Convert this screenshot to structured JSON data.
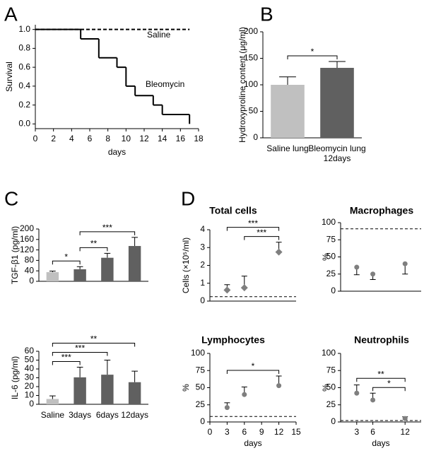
{
  "chart_data": [
    {
      "type": "line",
      "panel": "A",
      "step": true,
      "xlabel": "days",
      "ylabel": "Survival",
      "xlim": [
        0,
        18
      ],
      "xticks": [
        0,
        2,
        4,
        6,
        8,
        10,
        12,
        14,
        16,
        18
      ],
      "ylim": [
        -0.05,
        1.05
      ],
      "yticks": [
        {
          "value": 0,
          "label": "0.0"
        },
        {
          "value": 0.2,
          "label": "0.2"
        },
        {
          "value": 0.4,
          "label": "0.4"
        },
        {
          "value": 0.6,
          "label": "0.6"
        },
        {
          "value": 0.8,
          "label": "0.8"
        },
        {
          "value": 1,
          "label": "1.0"
        }
      ],
      "series": [
        {
          "name": "Saline",
          "color": "#000000",
          "dashed": true,
          "x": [
            0,
            17
          ],
          "values": [
            1,
            1
          ]
        },
        {
          "name": "Bleomycin",
          "color": "#000000",
          "dashed": false,
          "x": [
            0,
            5,
            7,
            9,
            10,
            11,
            13,
            14,
            17
          ],
          "values": [
            1,
            0.9,
            0.7,
            0.6,
            0.4,
            0.3,
            0.2,
            0.1,
            0
          ]
        }
      ]
    },
    {
      "type": "bar",
      "panel": "B",
      "ylabel": "Hydroxyproline content (μg/ml)",
      "categories": [
        "Saline lung",
        "Bleomycin lung\n12days"
      ],
      "values": [
        100,
        132
      ],
      "errors": [
        15,
        12
      ],
      "colors": [
        "#c0c0c0",
        "#606060"
      ],
      "ylim": [
        0,
        200
      ],
      "yticks": [
        0,
        50,
        100,
        150,
        200
      ],
      "significance": [
        {
          "from": 0,
          "to": 1,
          "label": "*"
        }
      ]
    },
    {
      "type": "bar",
      "panel": "C",
      "ylabel": "TGF-β1 (pg/ml)",
      "values": [
        35,
        46,
        90,
        135
      ],
      "errors": [
        4,
        10,
        17,
        33
      ],
      "colors": [
        "#c0c0c0",
        "#606060",
        "#606060",
        "#606060"
      ],
      "ylim": [
        0,
        200
      ],
      "yticks": [
        0,
        40,
        80,
        120,
        160,
        200
      ],
      "significance": [
        {
          "from": 0,
          "to": 1,
          "label": "*"
        },
        {
          "from": 1,
          "to": 2,
          "label": "**"
        },
        {
          "from": 1,
          "to": 3,
          "label": "***"
        }
      ]
    },
    {
      "type": "bar",
      "ylabel": "IL-6 (pg/ml)",
      "categories": [
        "Saline",
        "3days",
        "6days",
        "12days"
      ],
      "values": [
        6,
        30.5,
        33.5,
        25
      ],
      "errors": [
        3.5,
        11.5,
        16.5,
        12.5
      ],
      "colors": [
        "#c0c0c0",
        "#606060",
        "#606060",
        "#606060"
      ],
      "ylim": [
        0,
        60
      ],
      "yticks": [
        0,
        10,
        20,
        30,
        40,
        50,
        60
      ],
      "significance": [
        {
          "from": 0,
          "to": 1,
          "label": "***"
        },
        {
          "from": 0,
          "to": 2,
          "label": "***"
        },
        {
          "from": 0,
          "to": 3,
          "label": "**"
        }
      ]
    },
    {
      "type": "scatter",
      "panel": "D",
      "title": "Total cells",
      "ylabel": "Cells (×10⁵/ml)",
      "marker": "diamond",
      "color": "#7f7f7f",
      "x": [
        3,
        6,
        12
      ],
      "values": [
        0.62,
        0.75,
        2.75
      ],
      "errors": [
        0.3,
        0.65,
        0.55
      ],
      "error_direction": "up",
      "xlim": [
        0,
        15
      ],
      "ylim": [
        0,
        4
      ],
      "yticks": [
        0,
        1,
        2,
        3,
        4
      ],
      "reference_line": 0.25,
      "significance": [
        {
          "from": 1,
          "to": 2,
          "label": "***"
        },
        {
          "from": 0,
          "to": 2,
          "label": "***"
        }
      ]
    },
    {
      "type": "scatter",
      "title": "Macrophages",
      "ylabel": "%",
      "marker": "circle",
      "color": "#7f7f7f",
      "x": [
        3,
        6,
        12
      ],
      "values": [
        35,
        25,
        40
      ],
      "errors": [
        11,
        8,
        15
      ],
      "error_direction": "down",
      "xlim": [
        0,
        15
      ],
      "ylim": [
        0,
        100
      ],
      "yticks": [
        0,
        25,
        50,
        75,
        100
      ],
      "reference_line": 91
    },
    {
      "type": "scatter",
      "title": "Lymphocytes",
      "ylabel": "%",
      "xlabel": "days",
      "marker": "circle",
      "color": "#7f7f7f",
      "x": [
        3,
        6,
        12
      ],
      "values": [
        21,
        40,
        53
      ],
      "errors": [
        7,
        11,
        14
      ],
      "error_direction": "up",
      "xlim": [
        0,
        15
      ],
      "xticks": [
        0,
        3,
        6,
        9,
        12,
        15
      ],
      "ylim": [
        0,
        100
      ],
      "yticks": [
        0,
        25,
        50,
        75,
        100
      ],
      "reference_line": 8,
      "significance": [
        {
          "from": 0,
          "to": 2,
          "label": "*"
        }
      ]
    },
    {
      "type": "scatter",
      "title": "Neutrophils",
      "ylabel": "%",
      "xlabel": "days",
      "marker": "circle",
      "color": "#7f7f7f",
      "x": [
        3,
        6,
        12
      ],
      "values": [
        42,
        32,
        5
      ],
      "errors": [
        12,
        10,
        2.5
      ],
      "error_direction": "up",
      "xlim": [
        0,
        15
      ],
      "xticks": [
        3,
        6,
        12
      ],
      "ylim": [
        0,
        100
      ],
      "yticks": [
        0,
        25,
        50,
        75,
        100
      ],
      "reference_line": 2,
      "significance": [
        {
          "from": 1,
          "to": 2,
          "label": "*"
        },
        {
          "from": 0,
          "to": 2,
          "label": "**"
        }
      ]
    }
  ]
}
